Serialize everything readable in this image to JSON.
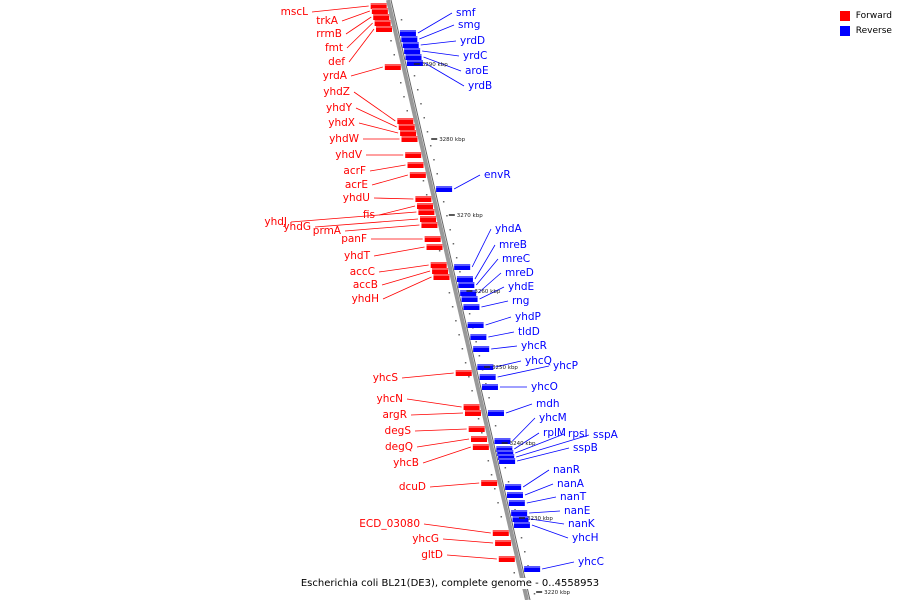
{
  "title": "Escherichia coli BL21(DE3), complete genome - 0..4558953",
  "legend": [
    {
      "label": "Forward",
      "color": "#ff0000"
    },
    {
      "label": "Reverse",
      "color": "#0000ff"
    }
  ],
  "ticks": [
    "3290 kbp",
    "3280 kbp",
    "3270 kbp",
    "3260 kbp",
    "3250 kbp",
    "3240 kbp",
    "3230 kbp",
    "3220 kbp"
  ],
  "forward_genes": [
    "mscL",
    "trkA",
    "rrmB",
    "fmt",
    "def",
    "yrdA",
    "yhdZ",
    "yhdY",
    "yhdX",
    "yhdW",
    "yhdV",
    "acrF",
    "acrE",
    "yhdU",
    "fis",
    "yhdJ",
    "yhdG",
    "prmA",
    "panF",
    "yhdT",
    "accC",
    "accB",
    "yhdH",
    "yhcS",
    "yhcN",
    "argR",
    "degS",
    "degQ",
    "yhcB",
    "dcuD",
    "ECD_03080",
    "yhcG",
    "gltD"
  ],
  "reverse_genes": [
    "smf",
    "smg",
    "yrdD",
    "yrdC",
    "aroE",
    "yrdB",
    "envR",
    "yhdA",
    "mreB",
    "mreC",
    "mreD",
    "yhdE",
    "rng",
    "yhdP",
    "tldD",
    "yhcR",
    "yhcQ",
    "yhcP",
    "yhcO",
    "mdh",
    "yhcM",
    "rplM",
    "rpsI",
    "sspA",
    "sspB",
    "nanR",
    "nanA",
    "nanT",
    "nanE",
    "nanK",
    "yhcH",
    "yhcC"
  ]
}
